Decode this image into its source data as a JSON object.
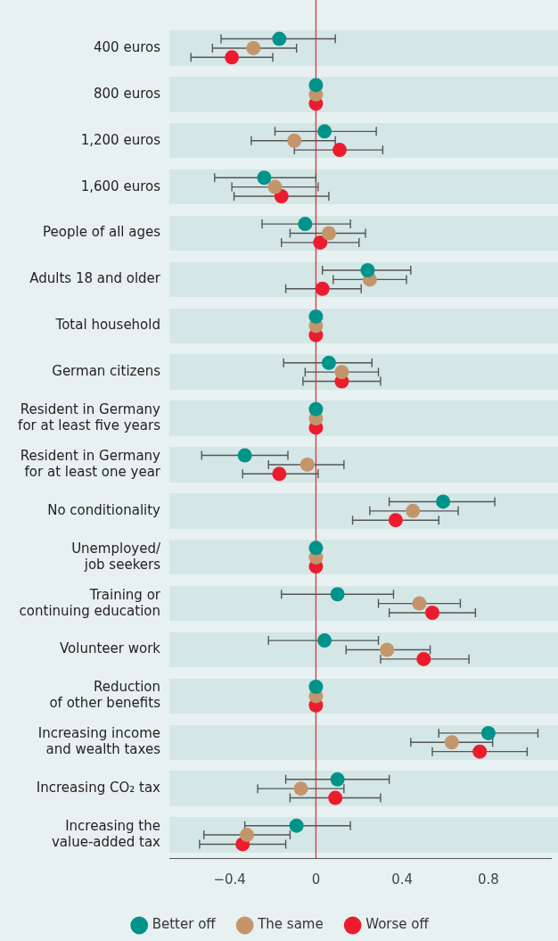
{
  "chart_data": {
    "type": "scatter",
    "orientation": "horizontal",
    "marker": "circle",
    "grid": false,
    "legend": "bottom",
    "categories": [
      "400 euros",
      "800 euros",
      "1,200 euros",
      "1,600 euros",
      "People of all ages",
      "Adults 18 and older",
      "Total household",
      "German citizens",
      "Resident in Germany\nfor at least five years",
      "Resident in Germany\nfor at least one year",
      "No conditionality",
      "Unemployed/\njob seekers",
      "Training or\ncontinuing education",
      "Volunteer work",
      "Reduction\nof other benefits",
      "Increasing income\nand wealth taxes",
      "Increasing CO₂ tax",
      "Increasing the\nvalue-added tax"
    ],
    "xlim": [
      -0.68,
      1.09
    ],
    "xticks": [
      {
        "value": -0.4,
        "label": "−0.4"
      },
      0,
      0.4,
      0.8
    ],
    "ref_lines": [
      {
        "axis": "x",
        "value": 0,
        "color": "#d9363e"
      }
    ],
    "series": [
      {
        "name": "Better off",
        "color": "#00938a",
        "values": [
          -0.17,
          0,
          0.04,
          -0.24,
          -0.05,
          0.24,
          0,
          0.06,
          0,
          -0.33,
          0.59,
          0,
          0.1,
          0.04,
          0,
          0.8,
          0.1,
          -0.09
        ],
        "errors": [
          [
            -0.44,
            0.09
          ],
          null,
          [
            -0.19,
            0.28
          ],
          [
            -0.47,
            0
          ],
          [
            -0.25,
            0.16
          ],
          [
            0.03,
            0.44
          ],
          null,
          [
            -0.15,
            0.26
          ],
          null,
          [
            -0.53,
            -0.13
          ],
          [
            0.34,
            0.83
          ],
          null,
          [
            -0.16,
            0.36
          ],
          [
            -0.22,
            0.29
          ],
          null,
          [
            0.57,
            1.03
          ],
          [
            -0.14,
            0.34
          ],
          [
            -0.33,
            0.16
          ]
        ]
      },
      {
        "name": "The same",
        "color": "#c4956a",
        "values": [
          -0.29,
          0,
          -0.1,
          -0.19,
          0.06,
          0.25,
          0,
          0.12,
          0,
          -0.04,
          0.45,
          0,
          0.48,
          0.33,
          0,
          0.63,
          -0.07,
          -0.32
        ],
        "errors": [
          [
            -0.48,
            -0.09
          ],
          null,
          [
            -0.3,
            0.09
          ],
          [
            -0.39,
            0.01
          ],
          [
            -0.12,
            0.23
          ],
          [
            0.08,
            0.42
          ],
          null,
          [
            -0.05,
            0.29
          ],
          null,
          [
            -0.22,
            0.13
          ],
          [
            0.25,
            0.66
          ],
          null,
          [
            0.29,
            0.67
          ],
          [
            0.14,
            0.53
          ],
          null,
          [
            0.44,
            0.82
          ],
          [
            -0.27,
            0.13
          ],
          [
            -0.52,
            -0.12
          ]
        ]
      },
      {
        "name": "Worse off",
        "color": "#ec1c2e",
        "values": [
          -0.39,
          0,
          0.11,
          -0.16,
          0.02,
          0.03,
          0,
          0.12,
          0,
          -0.17,
          0.37,
          0,
          0.54,
          0.5,
          0,
          0.76,
          0.09,
          -0.34
        ],
        "errors": [
          [
            -0.58,
            -0.2
          ],
          null,
          [
            -0.1,
            0.31
          ],
          [
            -0.38,
            0.06
          ],
          [
            -0.16,
            0.2
          ],
          [
            -0.14,
            0.21
          ],
          null,
          [
            -0.06,
            0.3
          ],
          null,
          [
            -0.34,
            0.01
          ],
          [
            0.17,
            0.57
          ],
          null,
          [
            0.34,
            0.74
          ],
          [
            0.3,
            0.71
          ],
          null,
          [
            0.54,
            0.98
          ],
          [
            -0.12,
            0.3
          ],
          [
            -0.54,
            -0.14
          ]
        ]
      }
    ]
  }
}
